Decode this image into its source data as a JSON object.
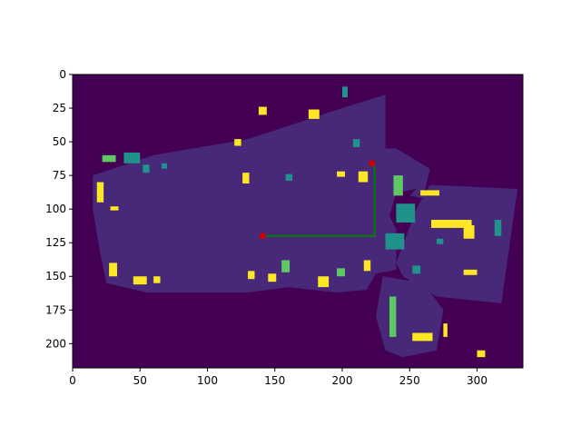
{
  "chart_data": {
    "type": "heatmap",
    "title": "",
    "xlabel": "",
    "ylabel": "",
    "xlim": [
      0,
      334
    ],
    "ylim": [
      218,
      0
    ],
    "x_ticks": [
      0,
      50,
      100,
      150,
      200,
      250,
      300
    ],
    "x_tick_labels": [
      "0",
      "50",
      "100",
      "150",
      "200",
      "250",
      "300"
    ],
    "y_ticks": [
      0,
      25,
      50,
      75,
      100,
      125,
      150,
      175,
      200
    ],
    "y_tick_labels": [
      "0",
      "25",
      "50",
      "75",
      "100",
      "125",
      "150",
      "175",
      "200"
    ],
    "colormap": "viridis",
    "colors": {
      "background": "#440154",
      "floor": "#482878",
      "obstacle_dark": "#3e4a89",
      "teal": "#21918c",
      "green": "#5ec962",
      "yellow": "#fde725",
      "path": "#008000",
      "path_endpoints": "#cc0000"
    },
    "path": {
      "points": [
        [
          141,
          120
        ],
        [
          224,
          120
        ],
        [
          224,
          70
        ],
        [
          222,
          66
        ]
      ],
      "start": [
        141,
        120
      ],
      "goal": [
        222,
        66
      ]
    },
    "floor_regions": [
      [
        [
          15,
          75
        ],
        [
          60,
          60
        ],
        [
          130,
          48
        ],
        [
          200,
          25
        ],
        [
          232,
          15
        ],
        [
          232,
          55
        ],
        [
          240,
          55
        ],
        [
          265,
          70
        ],
        [
          260,
          92
        ],
        [
          250,
          90
        ],
        [
          255,
          85
        ],
        [
          240,
          88
        ],
        [
          235,
          105
        ],
        [
          240,
          115
        ],
        [
          240,
          145
        ],
        [
          225,
          148
        ],
        [
          218,
          160
        ],
        [
          195,
          162
        ],
        [
          160,
          158
        ],
        [
          130,
          162
        ],
        [
          90,
          162
        ],
        [
          55,
          162
        ],
        [
          25,
          155
        ],
        [
          20,
          130
        ],
        [
          15,
          100
        ]
      ],
      [
        [
          265,
          82
        ],
        [
          330,
          85
        ],
        [
          318,
          170
        ],
        [
          270,
          165
        ],
        [
          245,
          150
        ],
        [
          240,
          140
        ],
        [
          255,
          100
        ]
      ],
      [
        [
          230,
          150
        ],
        [
          260,
          155
        ],
        [
          275,
          175
        ],
        [
          270,
          205
        ],
        [
          245,
          210
        ],
        [
          232,
          205
        ],
        [
          225,
          180
        ]
      ]
    ],
    "highlight_cells": [
      {
        "x": 138,
        "y": 24,
        "w": 6,
        "h": 6,
        "level": "yellow"
      },
      {
        "x": 175,
        "y": 26,
        "w": 8,
        "h": 7,
        "level": "yellow"
      },
      {
        "x": 200,
        "y": 9,
        "w": 4,
        "h": 8,
        "level": "teal"
      },
      {
        "x": 120,
        "y": 48,
        "w": 5,
        "h": 5,
        "level": "yellow"
      },
      {
        "x": 208,
        "y": 48,
        "w": 5,
        "h": 6,
        "level": "teal"
      },
      {
        "x": 22,
        "y": 60,
        "w": 10,
        "h": 5,
        "level": "green"
      },
      {
        "x": 38,
        "y": 58,
        "w": 12,
        "h": 8,
        "level": "teal"
      },
      {
        "x": 52,
        "y": 67,
        "w": 5,
        "h": 6,
        "level": "teal"
      },
      {
        "x": 66,
        "y": 66,
        "w": 4,
        "h": 4,
        "level": "teal"
      },
      {
        "x": 18,
        "y": 80,
        "w": 5,
        "h": 15,
        "level": "yellow"
      },
      {
        "x": 28,
        "y": 98,
        "w": 6,
        "h": 3,
        "level": "yellow"
      },
      {
        "x": 126,
        "y": 73,
        "w": 5,
        "h": 8,
        "level": "yellow"
      },
      {
        "x": 158,
        "y": 74,
        "w": 5,
        "h": 5,
        "level": "teal"
      },
      {
        "x": 196,
        "y": 72,
        "w": 6,
        "h": 4,
        "level": "yellow"
      },
      {
        "x": 212,
        "y": 72,
        "w": 7,
        "h": 8,
        "level": "yellow"
      },
      {
        "x": 238,
        "y": 75,
        "w": 7,
        "h": 15,
        "level": "green"
      },
      {
        "x": 258,
        "y": 86,
        "w": 14,
        "h": 4,
        "level": "yellow"
      },
      {
        "x": 240,
        "y": 96,
        "w": 14,
        "h": 14,
        "level": "teal"
      },
      {
        "x": 266,
        "y": 108,
        "w": 30,
        "h": 6,
        "level": "yellow"
      },
      {
        "x": 290,
        "y": 112,
        "w": 8,
        "h": 10,
        "level": "yellow"
      },
      {
        "x": 232,
        "y": 118,
        "w": 14,
        "h": 12,
        "level": "teal"
      },
      {
        "x": 270,
        "y": 122,
        "w": 5,
        "h": 4,
        "level": "teal"
      },
      {
        "x": 313,
        "y": 108,
        "w": 5,
        "h": 12,
        "level": "teal"
      },
      {
        "x": 27,
        "y": 140,
        "w": 6,
        "h": 10,
        "level": "yellow"
      },
      {
        "x": 45,
        "y": 150,
        "w": 10,
        "h": 6,
        "level": "yellow"
      },
      {
        "x": 60,
        "y": 150,
        "w": 5,
        "h": 5,
        "level": "yellow"
      },
      {
        "x": 130,
        "y": 146,
        "w": 5,
        "h": 6,
        "level": "yellow"
      },
      {
        "x": 155,
        "y": 138,
        "w": 6,
        "h": 9,
        "level": "green"
      },
      {
        "x": 145,
        "y": 148,
        "w": 6,
        "h": 6,
        "level": "yellow"
      },
      {
        "x": 182,
        "y": 150,
        "w": 8,
        "h": 8,
        "level": "yellow"
      },
      {
        "x": 196,
        "y": 144,
        "w": 6,
        "h": 6,
        "level": "green"
      },
      {
        "x": 216,
        "y": 138,
        "w": 5,
        "h": 8,
        "level": "yellow"
      },
      {
        "x": 252,
        "y": 142,
        "w": 6,
        "h": 6,
        "level": "teal"
      },
      {
        "x": 290,
        "y": 145,
        "w": 10,
        "h": 4,
        "level": "yellow"
      },
      {
        "x": 235,
        "y": 165,
        "w": 5,
        "h": 30,
        "level": "green"
      },
      {
        "x": 252,
        "y": 192,
        "w": 15,
        "h": 6,
        "level": "yellow"
      },
      {
        "x": 275,
        "y": 185,
        "w": 3,
        "h": 10,
        "level": "yellow"
      },
      {
        "x": 300,
        "y": 205,
        "w": 6,
        "h": 5,
        "level": "yellow"
      }
    ],
    "grid": false,
    "legend": "none"
  }
}
